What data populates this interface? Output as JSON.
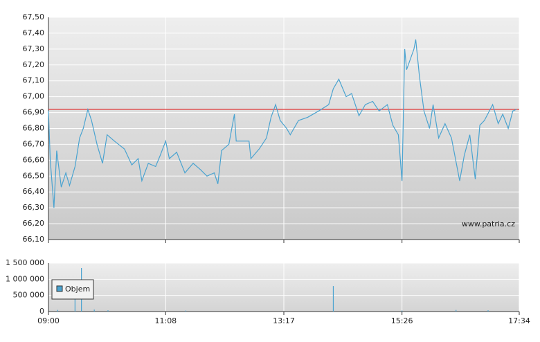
{
  "chart_data": [
    {
      "type": "line",
      "color": "#4aa3d0",
      "watermark": "www.patria.cz",
      "grid": true,
      "reference_line": {
        "value": 66.92,
        "color": "#e03838"
      },
      "x": [
        "09:00",
        "09:02",
        "09:06",
        "09:09",
        "09:14",
        "09:19",
        "09:23",
        "09:29",
        "09:34",
        "09:38",
        "09:43",
        "09:47",
        "09:53",
        "09:59",
        "10:04",
        "10:12",
        "10:23",
        "10:31",
        "10:38",
        "10:42",
        "10:49",
        "10:57",
        "11:02",
        "11:08",
        "11:12",
        "11:20",
        "11:29",
        "11:38",
        "11:46",
        "11:53",
        "12:01",
        "12:05",
        "12:09",
        "12:17",
        "12:23",
        "12:25",
        "12:39",
        "12:41",
        "12:50",
        "12:58",
        "13:03",
        "13:08",
        "13:13",
        "13:20",
        "13:24",
        "13:33",
        "13:43",
        "13:55",
        "14:06",
        "14:11",
        "14:17",
        "14:25",
        "14:31",
        "14:39",
        "14:46",
        "14:54",
        "15:01",
        "15:10",
        "15:16",
        "15:22",
        "15:26",
        "15:29",
        "15:31",
        "15:39",
        "15:41",
        "15:45",
        "15:50",
        "15:56",
        "16:00",
        "16:06",
        "16:13",
        "16:20",
        "16:29",
        "16:34",
        "16:40",
        "16:46",
        "16:51",
        "16:56",
        "17:05",
        "17:11",
        "17:16",
        "17:22",
        "17:27",
        "17:31"
      ],
      "values": [
        66.91,
        66.6,
        66.3,
        66.66,
        66.43,
        66.52,
        66.44,
        66.56,
        66.74,
        66.8,
        66.92,
        66.85,
        66.7,
        66.58,
        66.76,
        66.72,
        66.67,
        66.57,
        66.61,
        66.47,
        66.58,
        66.56,
        66.63,
        66.72,
        66.61,
        66.65,
        66.52,
        66.58,
        66.54,
        66.5,
        66.52,
        66.45,
        66.66,
        66.7,
        66.89,
        66.72,
        66.72,
        66.61,
        66.67,
        66.74,
        66.87,
        66.95,
        66.85,
        66.8,
        66.76,
        66.85,
        66.87,
        66.91,
        66.95,
        67.05,
        67.11,
        67.0,
        67.02,
        66.88,
        66.95,
        66.97,
        66.91,
        66.95,
        66.82,
        66.76,
        66.47,
        67.3,
        67.17,
        67.3,
        67.36,
        67.13,
        66.91,
        66.8,
        66.95,
        66.74,
        66.83,
        66.74,
        66.47,
        66.63,
        66.76,
        66.48,
        66.82,
        66.85,
        66.95,
        66.83,
        66.89,
        66.8,
        66.91,
        66.92
      ],
      "xlim": [
        "09:00",
        "17:34"
      ],
      "xticks": [
        "09:00",
        "11:08",
        "13:17",
        "15:26",
        "17:34"
      ],
      "ylim": [
        66.1,
        67.5
      ],
      "yticks": [
        {
          "value": 66.1,
          "label": "66,10"
        },
        {
          "value": 66.2,
          "label": "66,20"
        },
        {
          "value": 66.3,
          "label": "66,30"
        },
        {
          "value": 66.4,
          "label": "66,40"
        },
        {
          "value": 66.5,
          "label": "66,50"
        },
        {
          "value": 66.6,
          "label": "66,60"
        },
        {
          "value": 66.7,
          "label": "66,70"
        },
        {
          "value": 66.8,
          "label": "66,80"
        },
        {
          "value": 66.9,
          "label": "66,90"
        },
        {
          "value": 67.0,
          "label": "67,00"
        },
        {
          "value": 67.1,
          "label": "67,10"
        },
        {
          "value": 67.2,
          "label": "67,20"
        },
        {
          "value": 67.3,
          "label": "67,30"
        },
        {
          "value": 67.4,
          "label": "67,40"
        },
        {
          "value": 67.5,
          "label": "67,50"
        }
      ]
    },
    {
      "type": "bar",
      "legend": "lower left",
      "grid": true,
      "x": [
        "09:10",
        "09:29",
        "09:36",
        "09:50",
        "10:05",
        "11:30",
        "14:11",
        "15:26",
        "16:25",
        "17:00"
      ],
      "series": [
        {
          "name": "Objem",
          "color": "#4aa3d0",
          "values": [
            50000,
            400000,
            1350000,
            60000,
            40000,
            30000,
            790000,
            30000,
            50000,
            40000
          ]
        }
      ],
      "xlim": [
        "09:00",
        "17:34"
      ],
      "xticks": [
        "09:00",
        "11:08",
        "13:17",
        "15:26",
        "17:34"
      ],
      "ylim": [
        0,
        1500000
      ],
      "yticks": [
        0,
        {
          "value": 500000,
          "label": "500 000"
        },
        {
          "value": 1000000,
          "label": "1 000 000"
        },
        {
          "value": 1500000,
          "label": "1 500 000"
        }
      ]
    }
  ]
}
